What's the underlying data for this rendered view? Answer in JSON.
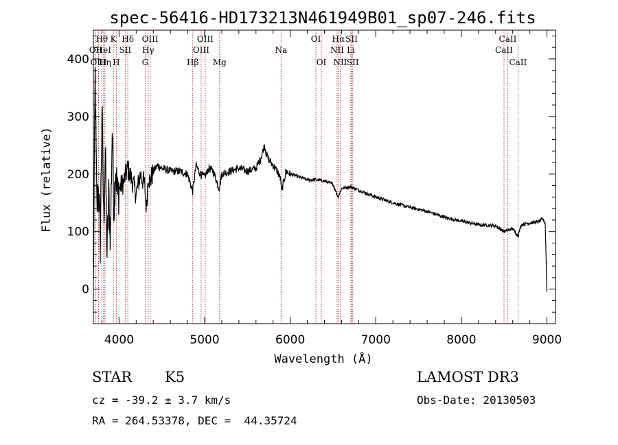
{
  "chart_data": {
    "type": "line",
    "title": "spec-56416-HD173213N461949B01_sp07-246.fits",
    "xlabel": "Wavelength (Å)",
    "ylabel": "Flux (relative)",
    "xlim": [
      3700,
      9100
    ],
    "ylim": [
      -60,
      450
    ],
    "xticks": [
      4000,
      5000,
      6000,
      7000,
      8000,
      9000
    ],
    "yticks": [
      0,
      100,
      200,
      300,
      400
    ],
    "series": [
      {
        "name": "flux",
        "x": [
          3700,
          3720,
          3740,
          3760,
          3780,
          3800,
          3820,
          3840,
          3860,
          3880,
          3900,
          3920,
          3940,
          3960,
          3980,
          4000,
          4050,
          4100,
          4150,
          4200,
          4250,
          4300,
          4320,
          4340,
          4360,
          4400,
          4450,
          4500,
          4600,
          4700,
          4800,
          4860,
          4900,
          4950,
          5000,
          5050,
          5100,
          5170,
          5200,
          5300,
          5400,
          5500,
          5600,
          5650,
          5680,
          5700,
          5720,
          5750,
          5800,
          5850,
          5890,
          5900,
          5950,
          6000,
          6100,
          6200,
          6300,
          6400,
          6500,
          6560,
          6600,
          6700,
          6800,
          7000,
          7200,
          7400,
          7600,
          7800,
          8000,
          8200,
          8400,
          8498,
          8542,
          8600,
          8662,
          8700,
          8800,
          8900,
          8950,
          8980,
          9000
        ],
        "y": [
          0,
          370,
          140,
          180,
          80,
          320,
          120,
          240,
          60,
          160,
          90,
          280,
          140,
          220,
          160,
          175,
          185,
          210,
          190,
          165,
          200,
          180,
          140,
          200,
          185,
          205,
          215,
          210,
          205,
          205,
          200,
          170,
          215,
          200,
          195,
          210,
          205,
          175,
          200,
          205,
          210,
          205,
          210,
          225,
          240,
          250,
          235,
          225,
          215,
          205,
          190,
          170,
          205,
          200,
          195,
          190,
          190,
          188,
          182,
          160,
          175,
          178,
          172,
          160,
          150,
          142,
          135,
          125,
          118,
          112,
          110,
          100,
          102,
          105,
          92,
          112,
          115,
          117,
          122,
          115,
          -5
        ]
      }
    ],
    "line_markers": [
      {
        "label": "Hθ",
        "wavelength": 3798,
        "row": 0
      },
      {
        "label": "OII",
        "wavelength": 3727,
        "row": 1
      },
      {
        "label": "OIII",
        "wavelength": 3760,
        "row": 2
      },
      {
        "label": "HeI",
        "wavelength": 3820,
        "row": 1
      },
      {
        "label": "Hη",
        "wavelength": 3835,
        "row": 2
      },
      {
        "label": "K",
        "wavelength": 3934,
        "row": 0
      },
      {
        "label": "H",
        "wavelength": 3968,
        "row": 2
      },
      {
        "label": "SII",
        "wavelength": 4072,
        "row": 1
      },
      {
        "label": "Hδ",
        "wavelength": 4102,
        "row": 0
      },
      {
        "label": "OIII",
        "wavelength": 4363,
        "row": 0
      },
      {
        "label": "Hγ",
        "wavelength": 4340,
        "row": 1
      },
      {
        "label": "G",
        "wavelength": 4305,
        "row": 2
      },
      {
        "label": "Hβ",
        "wavelength": 4861,
        "row": 2
      },
      {
        "label": "OIII",
        "wavelength": 5007,
        "row": 0
      },
      {
        "label": "OIII",
        "wavelength": 4959,
        "row": 1
      },
      {
        "label": "Mg",
        "wavelength": 5175,
        "row": 2
      },
      {
        "label": "Na",
        "wavelength": 5893,
        "row": 1
      },
      {
        "label": "OI",
        "wavelength": 6300,
        "row": 0
      },
      {
        "label": "OI",
        "wavelength": 6364,
        "row": 2
      },
      {
        "label": "Hα",
        "wavelength": 6563,
        "row": 0
      },
      {
        "label": "NII",
        "wavelength": 6548,
        "row": 1
      },
      {
        "label": "NII",
        "wavelength": 6584,
        "row": 2
      },
      {
        "label": "SII",
        "wavelength": 6717,
        "row": 0
      },
      {
        "label": "Li",
        "wavelength": 6708,
        "row": 1
      },
      {
        "label": "SII",
        "wavelength": 6731,
        "row": 2
      },
      {
        "label": "CaII",
        "wavelength": 8542,
        "row": 0
      },
      {
        "label": "CaII",
        "wavelength": 8498,
        "row": 1
      },
      {
        "label": "CaII",
        "wavelength": 8662,
        "row": 2
      }
    ],
    "marker_color": "#b22222"
  },
  "info": {
    "object_class": "STAR",
    "subclass": "K5",
    "survey": "LAMOST DR3",
    "cz": "cz = -39.2 ± 3.7 km/s",
    "obs_date": "Obs-Date: 20130503",
    "coords": "RA = 264.53378, DEC =  44.35724"
  }
}
